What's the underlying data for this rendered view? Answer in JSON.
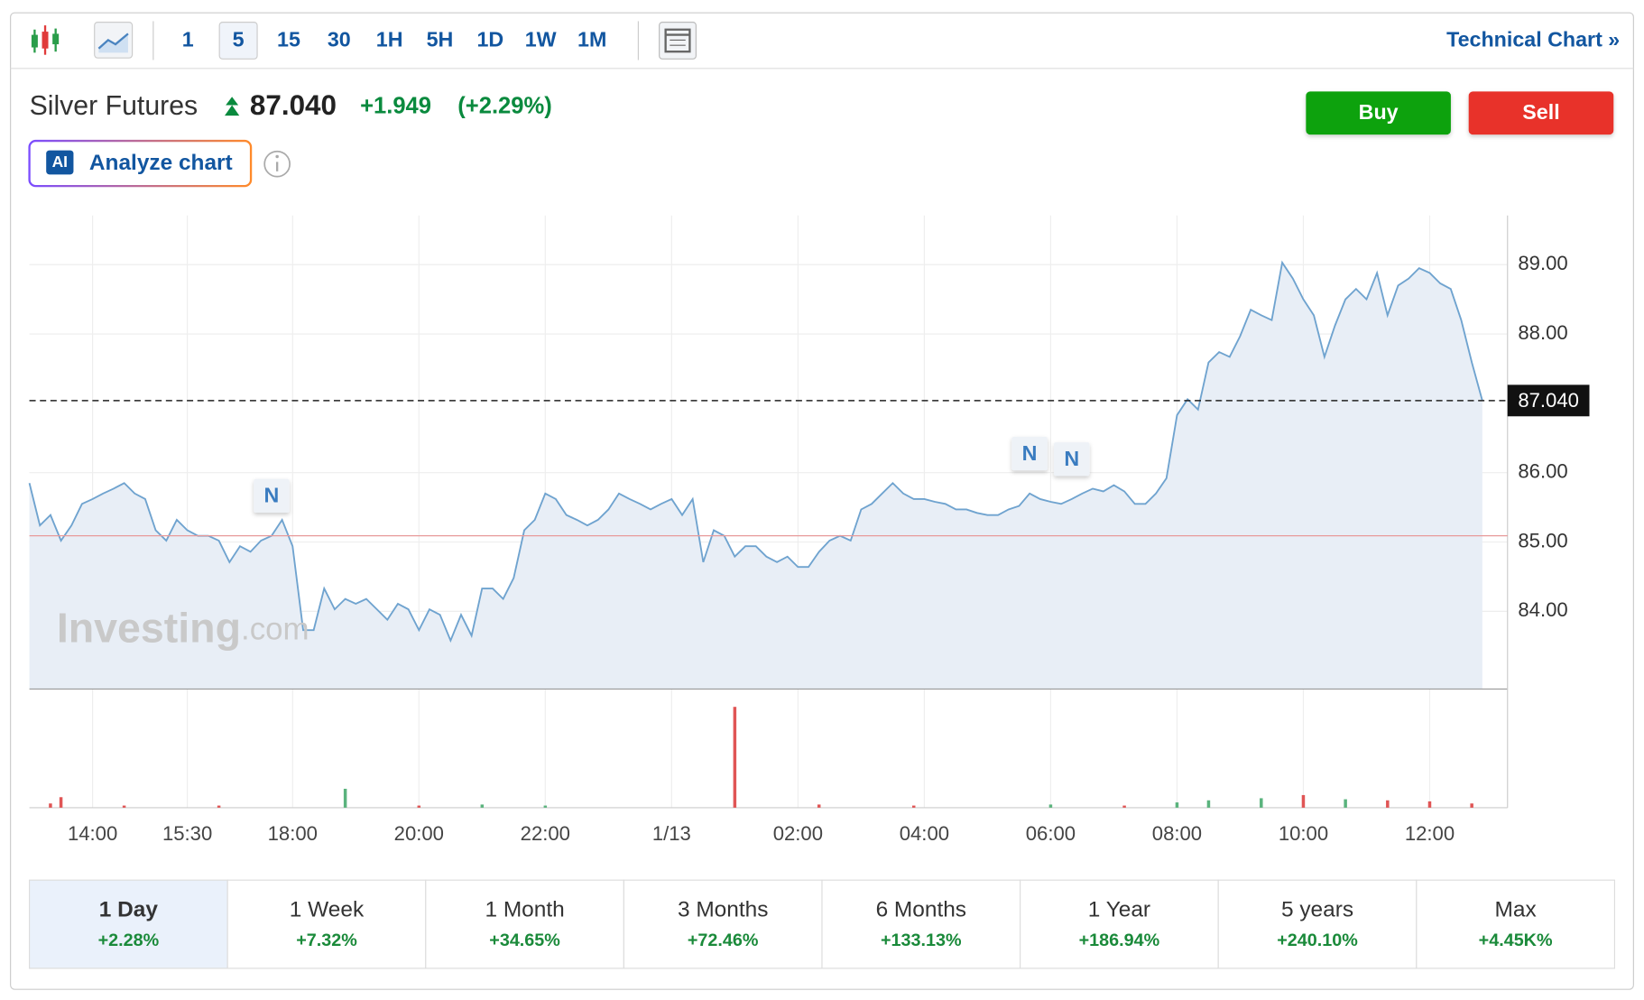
{
  "toolbar": {
    "intervals": [
      "1",
      "5",
      "15",
      "30",
      "1H",
      "5H",
      "1D",
      "1W",
      "1M"
    ],
    "link": "Technical Chart »"
  },
  "instrument": {
    "name": "Silver Futures",
    "price": "87.040",
    "change": "+1.949",
    "change_pct": "(+2.29%)"
  },
  "buttons": {
    "buy": "Buy",
    "sell": "Sell"
  },
  "ai": {
    "badge": "AI",
    "label": "Analyze chart"
  },
  "watermark": {
    "brand": "Investing",
    "suffix": ".com"
  },
  "chart_data": {
    "type": "line",
    "color": "#6fa3cf",
    "fill": "#e8eef6",
    "values": [
      85.85,
      85.24,
      85.39,
      85.02,
      85.24,
      85.55,
      85.62,
      85.7,
      85.77,
      85.85,
      85.7,
      85.62,
      85.17,
      85.02,
      85.32,
      85.17,
      85.09,
      85.09,
      85.02,
      84.71,
      84.94,
      84.86,
      85.02,
      85.09,
      85.32,
      84.94,
      83.73,
      83.73,
      84.33,
      84.03,
      84.18,
      84.11,
      84.18,
      84.03,
      83.88,
      84.11,
      84.03,
      83.73,
      84.03,
      83.95,
      83.58,
      83.95,
      83.65,
      84.33,
      84.33,
      84.18,
      84.48,
      85.17,
      85.32,
      85.7,
      85.62,
      85.39,
      85.32,
      85.24,
      85.32,
      85.47,
      85.7,
      85.62,
      85.55,
      85.47,
      85.55,
      85.62,
      85.39,
      85.62,
      84.71,
      85.17,
      85.09,
      84.79,
      84.94,
      84.94,
      84.79,
      84.71,
      84.79,
      84.64,
      84.64,
      84.86,
      85.02,
      85.09,
      85.02,
      85.47,
      85.55,
      85.7,
      85.85,
      85.7,
      85.62,
      85.62,
      85.58,
      85.55,
      85.47,
      85.47,
      85.42,
      85.39,
      85.39,
      85.47,
      85.52,
      85.7,
      85.62,
      85.58,
      85.55,
      85.62,
      85.7,
      85.77,
      85.73,
      85.82,
      85.73,
      85.55,
      85.55,
      85.7,
      85.92,
      86.83,
      87.06,
      86.91,
      87.59,
      87.74,
      87.67,
      87.97,
      88.35,
      88.27,
      88.2,
      89.03,
      88.8,
      88.5,
      88.27,
      87.67,
      88.12,
      88.5,
      88.65,
      88.5,
      88.88,
      88.27,
      88.7,
      88.8,
      88.95,
      88.88,
      88.73,
      88.65,
      88.2,
      87.59,
      87.04
    ],
    "xlim": [
      0,
      138
    ],
    "xticks": [
      {
        "value": 6,
        "label": "14:00"
      },
      {
        "value": 15,
        "label": "15:30"
      },
      {
        "value": 25,
        "label": "18:00"
      },
      {
        "value": 37,
        "label": "20:00"
      },
      {
        "value": 49,
        "label": "22:00"
      },
      {
        "value": 61,
        "label": "1/13"
      },
      {
        "value": 73,
        "label": "02:00"
      },
      {
        "value": 85,
        "label": "04:00"
      },
      {
        "value": 97,
        "label": "06:00"
      },
      {
        "value": 109,
        "label": "08:00"
      },
      {
        "value": 121,
        "label": "10:00"
      },
      {
        "value": 133,
        "label": "12:00"
      }
    ],
    "ylim": [
      82.88,
      89.71
    ],
    "yticks": [
      {
        "value": 84,
        "label": "84.00"
      },
      {
        "value": 85,
        "label": "85.00"
      },
      {
        "value": 86,
        "label": "86.00"
      },
      {
        "value": 88,
        "label": "88.00"
      },
      {
        "value": 89,
        "label": "89.00"
      }
    ],
    "grid": true,
    "current_price": {
      "value": 87.04,
      "label": "87.040"
    },
    "previous_close": 85.09,
    "annotations": [
      {
        "x": 23,
        "label": "N"
      },
      {
        "x": 95,
        "label": "N"
      },
      {
        "x": 99,
        "label": "N"
      }
    ],
    "volume": {
      "x": [
        2,
        3,
        9,
        18,
        30,
        37,
        43,
        49,
        67,
        75,
        84,
        97,
        104,
        109,
        112,
        117,
        121,
        125,
        129,
        133,
        137
      ],
      "values": [
        4,
        10,
        2,
        2,
        18,
        2,
        3,
        2,
        96,
        3,
        2,
        3,
        2,
        5,
        7,
        9,
        12,
        8,
        7,
        6,
        4
      ],
      "colors": [
        "#e05555",
        "#e05555",
        "#e05555",
        "#e05555",
        "#5ab37d",
        "#e05555",
        "#5ab37d",
        "#5ab37d",
        "#e05555",
        "#e05555",
        "#e05555",
        "#5ab37d",
        "#e05555",
        "#5ab37d",
        "#5ab37d",
        "#5ab37d",
        "#e05555",
        "#5ab37d",
        "#e05555",
        "#e05555",
        "#e05555"
      ],
      "ylim": [
        0,
        100
      ]
    }
  },
  "periods": [
    {
      "label": "1 Day",
      "change": "+2.28%"
    },
    {
      "label": "1 Week",
      "change": "+7.32%"
    },
    {
      "label": "1 Month",
      "change": "+34.65%"
    },
    {
      "label": "3 Months",
      "change": "+72.46%"
    },
    {
      "label": "6 Months",
      "change": "+133.13%"
    },
    {
      "label": "1 Year",
      "change": "+186.94%"
    },
    {
      "label": "5 years",
      "change": "+240.10%"
    },
    {
      "label": "Max",
      "change": "+4.45K%"
    }
  ]
}
